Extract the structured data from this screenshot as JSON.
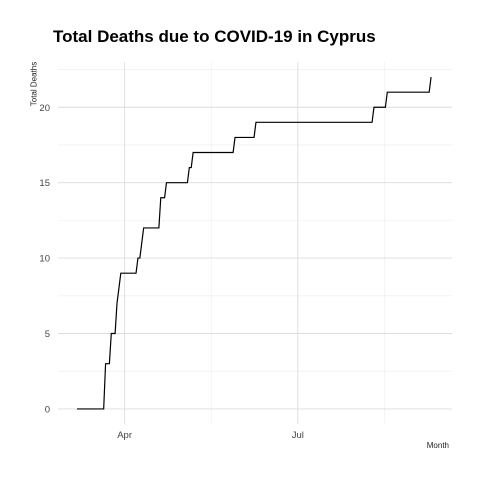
{
  "chart_data": {
    "type": "line",
    "title": "Total Deaths due to COVID-19 in Cyprus",
    "xlabel": "Month",
    "ylabel": "Total Deaths",
    "x_ticks": [
      "Apr",
      "Jul"
    ],
    "y_ticks": [
      0,
      5,
      10,
      15,
      20
    ],
    "ylim": [
      -1,
      23
    ],
    "xlim": [
      "2020-02-26",
      "2020-09-20"
    ],
    "grid": true,
    "line_color": "#000000",
    "series": [
      {
        "x": [
          "2020-03-07",
          "2020-03-21",
          "2020-03-22",
          "2020-03-24",
          "2020-03-25",
          "2020-03-27",
          "2020-03-28",
          "2020-03-29",
          "2020-03-30",
          "2020-03-31",
          "2020-04-01",
          "2020-04-07",
          "2020-04-08",
          "2020-04-09",
          "2020-04-11",
          "2020-04-12",
          "2020-04-13",
          "2020-04-14",
          "2020-04-19",
          "2020-04-20",
          "2020-04-22",
          "2020-04-23",
          "2020-04-25",
          "2020-05-04",
          "2020-05-05",
          "2020-05-06",
          "2020-05-07",
          "2020-05-08",
          "2020-05-28",
          "2020-05-29",
          "2020-06-08",
          "2020-06-09",
          "2020-08-09",
          "2020-08-10",
          "2020-08-16",
          "2020-08-17",
          "2020-09-08",
          "2020-09-09"
        ],
        "values": [
          0,
          0,
          3,
          3,
          5,
          5,
          7,
          8,
          9,
          9,
          9,
          9,
          10,
          10,
          12,
          12,
          12,
          12,
          12,
          14,
          14,
          15,
          15,
          15,
          16,
          16,
          17,
          17,
          17,
          18,
          18,
          19,
          19,
          20,
          20,
          21,
          21,
          22
        ]
      }
    ]
  }
}
